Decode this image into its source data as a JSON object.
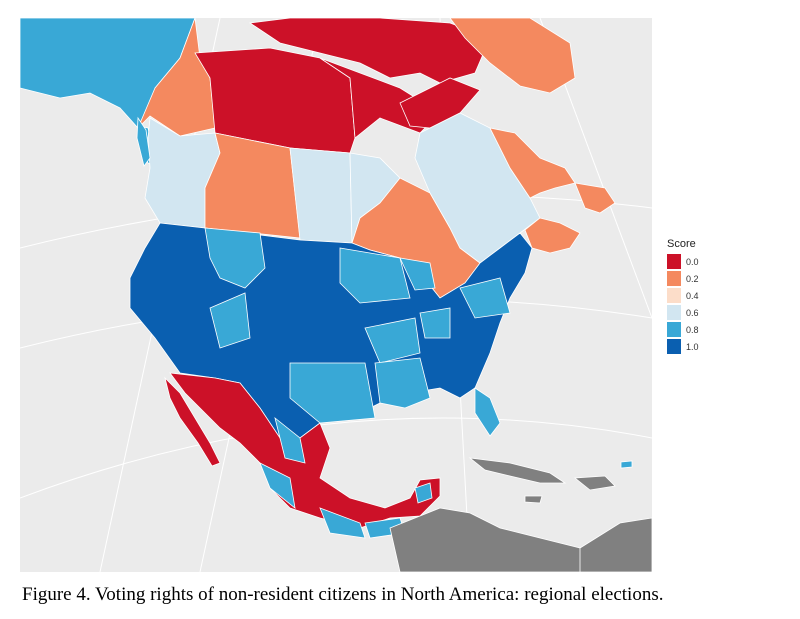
{
  "caption": "Figure 4. Voting rights of non-resident citizens in North America: regional elections.",
  "legend": {
    "title": "Score",
    "items": [
      {
        "label": "0.0",
        "color": "#cc1128"
      },
      {
        "label": "0.2",
        "color": "#f4895f"
      },
      {
        "label": "0.4",
        "color": "#fcddc9"
      },
      {
        "label": "0.6",
        "color": "#d2e6f1"
      },
      {
        "label": "0.8",
        "color": "#39a8d6"
      },
      {
        "label": "1.0",
        "color": "#0a5fb0"
      }
    ]
  },
  "colors": {
    "background": "#ebebeb",
    "graticule": "#ffffff",
    "no_data": "#808080",
    "borders": "#ffffff"
  }
}
